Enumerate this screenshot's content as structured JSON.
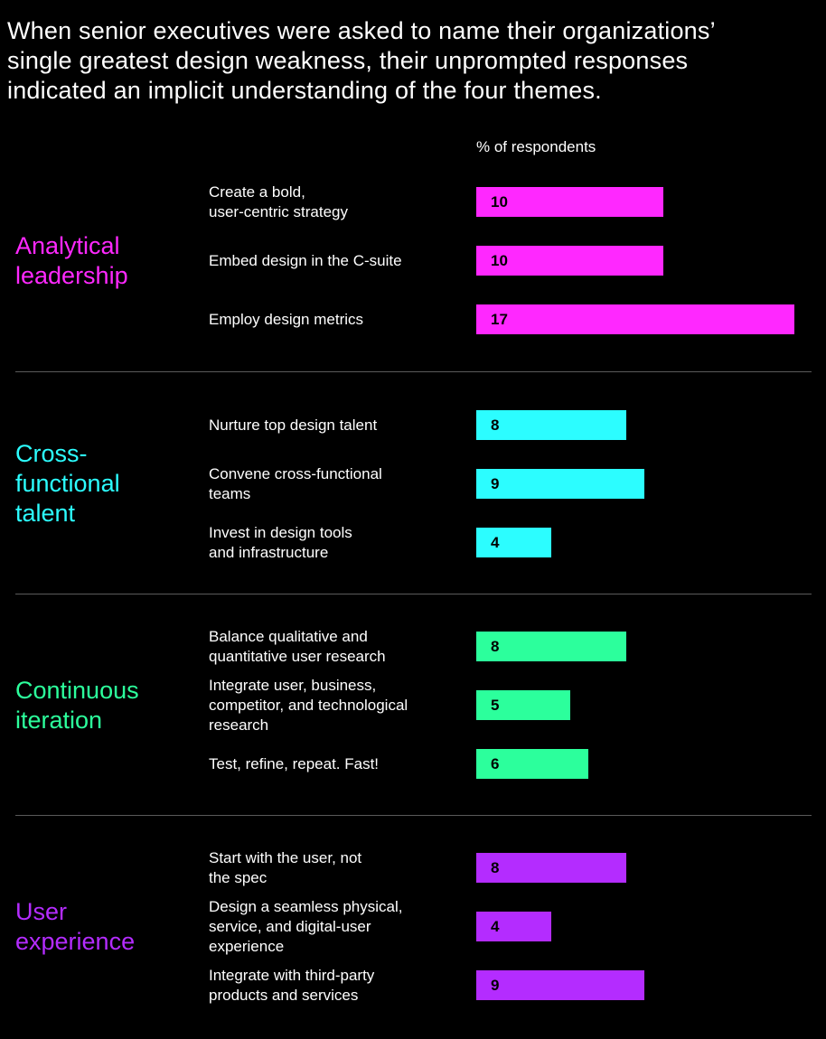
{
  "headline": [
    "When senior executives were asked to name their organizations’",
    "single greatest design weakness, their unprompted responses",
    "indicated an implicit understanding of the four themes."
  ],
  "axis_label": "% of respondents",
  "chart_data": {
    "type": "bar",
    "orientation": "horizontal",
    "title": "When senior executives were asked to name their organizations’ single greatest design weakness, their unprompted responses indicated an implicit understanding of the four themes.",
    "xlabel": "% of respondents",
    "xlim": [
      0,
      17
    ],
    "grid": false,
    "groups": [
      {
        "theme": [
          "Analytical",
          "leadership"
        ],
        "color": "#ff28ff",
        "items": [
          {
            "label": [
              "Create a bold,",
              "user-centric strategy"
            ],
            "value": 10
          },
          {
            "label": [
              "Embed design in the C-suite"
            ],
            "value": 10
          },
          {
            "label": [
              "Employ design metrics"
            ],
            "value": 17
          }
        ]
      },
      {
        "theme": [
          "Cross-",
          "functional",
          "talent"
        ],
        "color": "#2cfdff",
        "items": [
          {
            "label": [
              "Nurture top design talent"
            ],
            "value": 8
          },
          {
            "label": [
              "Convene cross-functional",
              "teams"
            ],
            "value": 9
          },
          {
            "label": [
              "Invest in design tools",
              "and infrastructure"
            ],
            "value": 4
          }
        ]
      },
      {
        "theme": [
          "Continuous",
          "iteration"
        ],
        "color": "#2cff9c",
        "items": [
          {
            "label": [
              "Balance qualitative and",
              "quantitative user research"
            ],
            "value": 8
          },
          {
            "label": [
              "Integrate user, business,",
              "competitor, and technological",
              "research"
            ],
            "value": 5
          },
          {
            "label": [
              "Test, refine, repeat. Fast!"
            ],
            "value": 6
          }
        ]
      },
      {
        "theme": [
          "User",
          "experience"
        ],
        "color": "#b42cff",
        "items": [
          {
            "label": [
              "Start with the user, not",
              "the spec"
            ],
            "value": 8
          },
          {
            "label": [
              "Design a seamless physical,",
              "service, and digital-user",
              "experience"
            ],
            "value": 4
          },
          {
            "label": [
              "Integrate with third-party",
              "products and services"
            ],
            "value": 9
          }
        ]
      }
    ]
  }
}
